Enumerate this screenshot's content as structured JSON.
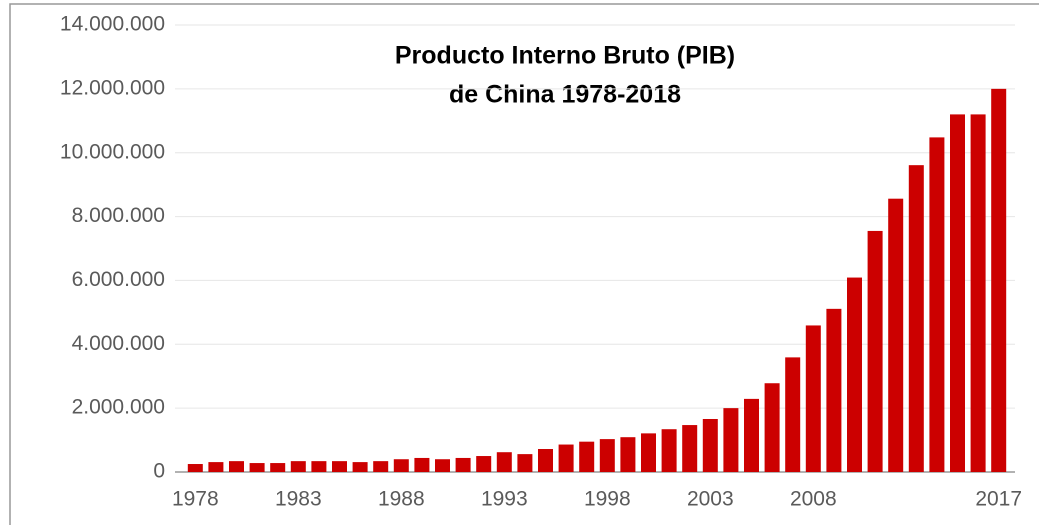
{
  "chart_data": {
    "type": "bar",
    "title": [
      "Producto Interno Bruto (PIB)",
      "de China 1978-2018"
    ],
    "categories": [
      "1978",
      null,
      null,
      null,
      null,
      "1983",
      null,
      null,
      null,
      null,
      "1988",
      null,
      null,
      null,
      null,
      "1993",
      null,
      null,
      null,
      null,
      "1998",
      null,
      null,
      null,
      null,
      "2003",
      null,
      null,
      null,
      null,
      "2008",
      null,
      null,
      null,
      null,
      null,
      null,
      null,
      null,
      "2017"
    ],
    "values": [
      250000,
      310000,
      340000,
      280000,
      280000,
      340000,
      340000,
      340000,
      310000,
      340000,
      400000,
      440000,
      400000,
      440000,
      500000,
      620000,
      560000,
      720000,
      860000,
      950000,
      1030000,
      1090000,
      1210000,
      1340000,
      1470000,
      1660000,
      2000000,
      2290000,
      2780000,
      3590000,
      4590000,
      5110000,
      6090000,
      7550000,
      8560000,
      9610000,
      10480000,
      11200000,
      11200000,
      12000000
    ],
    "color": "#cc0000",
    "ylim": [
      0,
      14000000
    ],
    "yticks": [
      0,
      {
        "value": 2000000,
        "label": "2.000.000"
      },
      {
        "value": 4000000,
        "label": "4.000.000"
      },
      {
        "value": 6000000,
        "label": "6.000.000"
      },
      {
        "value": 8000000,
        "label": "8.000.000"
      },
      {
        "value": 10000000,
        "label": "10.000.000"
      },
      {
        "value": 12000000,
        "label": "12.000.000"
      },
      {
        "value": 14000000,
        "label": "14.000.000"
      }
    ],
    "grid": true
  }
}
